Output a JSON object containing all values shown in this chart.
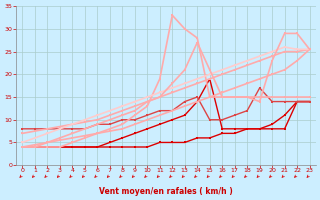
{
  "xlabel": "Vent moyen/en rafales ( km/h )",
  "xlim": [
    -0.5,
    23.5
  ],
  "ylim": [
    0,
    35
  ],
  "xticks": [
    0,
    1,
    2,
    3,
    4,
    5,
    6,
    7,
    8,
    9,
    10,
    11,
    12,
    13,
    14,
    15,
    16,
    17,
    18,
    19,
    20,
    21,
    22,
    23
  ],
  "yticks": [
    0,
    5,
    10,
    15,
    20,
    25,
    30,
    35
  ],
  "bg_color": "#cceeff",
  "grid_color": "#aacccc",
  "lines": [
    {
      "x": [
        0,
        1,
        2,
        3,
        4,
        5,
        6,
        7,
        8,
        9,
        10,
        11,
        12,
        13,
        14,
        15,
        16,
        17,
        18,
        19,
        20,
        21,
        22,
        23
      ],
      "y": [
        4,
        4,
        4,
        4,
        4,
        4,
        4,
        4,
        4,
        4,
        4,
        5,
        5,
        5,
        6,
        6,
        7,
        7,
        8,
        8,
        9,
        11,
        14,
        14
      ],
      "color": "#dd0000",
      "lw": 1.0,
      "marker": "s",
      "ms": 2.0
    },
    {
      "x": [
        0,
        1,
        2,
        3,
        4,
        5,
        6,
        7,
        8,
        9,
        10,
        11,
        12,
        13,
        14,
        15,
        16,
        17,
        18,
        19,
        20,
        21,
        22,
        23
      ],
      "y": [
        4,
        4,
        4,
        4,
        4,
        4,
        4,
        5,
        6,
        7,
        8,
        9,
        10,
        11,
        14,
        19,
        8,
        8,
        8,
        8,
        8,
        8,
        14,
        14
      ],
      "color": "#dd0000",
      "lw": 1.0,
      "marker": "s",
      "ms": 2.0
    },
    {
      "x": [
        0,
        1,
        2,
        3,
        4,
        5,
        6,
        7,
        8,
        9,
        10,
        11,
        12,
        13,
        14,
        15,
        16,
        17,
        18,
        19,
        20,
        21,
        22,
        23
      ],
      "y": [
        8,
        8,
        8,
        8,
        8,
        8,
        9,
        9,
        10,
        10,
        11,
        12,
        12,
        14,
        15,
        10,
        10,
        11,
        12,
        17,
        14,
        14,
        14,
        14
      ],
      "color": "#dd4444",
      "lw": 1.0,
      "marker": "s",
      "ms": 2.0
    },
    {
      "x": [
        0,
        1,
        2,
        3,
        4,
        5,
        6,
        7,
        8,
        9,
        10,
        11,
        12,
        13,
        14,
        15,
        16,
        17,
        18,
        19,
        20,
        21,
        22,
        23
      ],
      "y": [
        4,
        4.5,
        5,
        5.5,
        6,
        6.5,
        7,
        7.5,
        8,
        9,
        10,
        11,
        12,
        13,
        14,
        15,
        16,
        17,
        18,
        19,
        20,
        21,
        23,
        25.5
      ],
      "color": "#ffaaaa",
      "lw": 1.2,
      "marker": "s",
      "ms": 1.8
    },
    {
      "x": [
        0,
        1,
        2,
        3,
        4,
        5,
        6,
        7,
        8,
        9,
        10,
        11,
        12,
        13,
        14,
        15,
        16,
        17,
        18,
        19,
        20,
        21,
        22,
        23
      ],
      "y": [
        7,
        7.5,
        8,
        8.5,
        9,
        9.5,
        10,
        11,
        12,
        13,
        14,
        15,
        16,
        17,
        18,
        19,
        20,
        21,
        22,
        23,
        24,
        25,
        25,
        25.5
      ],
      "color": "#ffaaaa",
      "lw": 1.2,
      "marker": "s",
      "ms": 1.8
    },
    {
      "x": [
        0,
        1,
        2,
        3,
        4,
        5,
        6,
        7,
        8,
        9,
        10,
        11,
        12,
        13,
        14,
        15,
        16,
        17,
        18,
        19,
        20,
        21,
        22,
        23
      ],
      "y": [
        4,
        4,
        4,
        4,
        5,
        6,
        7,
        8,
        9,
        11,
        13,
        19,
        33,
        30,
        28,
        15,
        15,
        15,
        15,
        15,
        15,
        15,
        15,
        15
      ],
      "color": "#ffaaaa",
      "lw": 1.2,
      "marker": "s",
      "ms": 1.8
    },
    {
      "x": [
        0,
        1,
        2,
        3,
        4,
        5,
        6,
        7,
        8,
        9,
        10,
        11,
        12,
        13,
        14,
        15,
        16,
        17,
        18,
        19,
        20,
        21,
        22,
        23
      ],
      "y": [
        5,
        6,
        7,
        8,
        9,
        10,
        11,
        12,
        13,
        14,
        15,
        16,
        17,
        18,
        19,
        20,
        21,
        22,
        23,
        24,
        25,
        26,
        25.5,
        25.5
      ],
      "color": "#ffcccc",
      "lw": 1.2,
      "marker": "s",
      "ms": 1.8
    },
    {
      "x": [
        0,
        1,
        2,
        3,
        4,
        5,
        6,
        7,
        8,
        9,
        10,
        11,
        12,
        13,
        14,
        15,
        16,
        17,
        18,
        19,
        20,
        21,
        22,
        23
      ],
      "y": [
        4,
        4,
        5,
        6,
        7,
        8,
        9,
        10,
        11,
        12,
        14,
        15,
        18,
        21,
        27,
        21,
        15,
        15,
        15,
        14,
        23,
        29,
        29,
        25.5
      ],
      "color": "#ffaaaa",
      "lw": 1.2,
      "marker": "s",
      "ms": 1.8
    }
  ],
  "arrow_color": "#dd0000"
}
